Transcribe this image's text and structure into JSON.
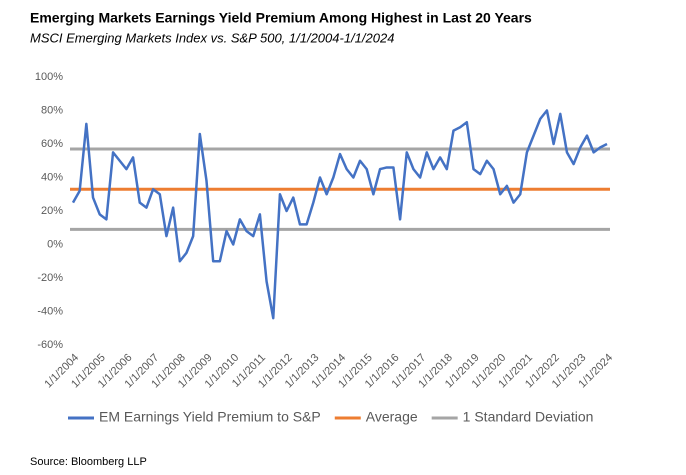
{
  "chart_data": {
    "type": "line",
    "title": "Emerging Markets Earnings Yield Premium Among Highest in Last 20 Years",
    "subtitle": "MSCI Emerging Markets Index vs. S&P 500, 1/1/2004-1/1/2024",
    "source": "Source: Bloomberg LLP",
    "categories": [
      "1/1/2004",
      null,
      null,
      null,
      "1/1/2005",
      null,
      null,
      null,
      "1/1/2006",
      null,
      null,
      null,
      "1/1/2007",
      null,
      null,
      null,
      "1/1/2008",
      null,
      null,
      null,
      "1/1/2009",
      null,
      null,
      null,
      "1/1/2010",
      null,
      null,
      null,
      "1/1/2011",
      null,
      null,
      null,
      "1/1/2012",
      null,
      null,
      null,
      "1/1/2013",
      null,
      null,
      null,
      "1/1/2014",
      null,
      null,
      null,
      "1/1/2015",
      null,
      null,
      null,
      "1/1/2016",
      null,
      null,
      null,
      "1/1/2017",
      null,
      null,
      null,
      "1/1/2018",
      null,
      null,
      null,
      "1/1/2019",
      null,
      null,
      null,
      "1/1/2020",
      null,
      null,
      null,
      "1/1/2021",
      null,
      null,
      null,
      "1/1/2022",
      null,
      null,
      null,
      "1/1/2023",
      null,
      null,
      null,
      "1/1/2024"
    ],
    "series": [
      {
        "name": "EM Earnings Yield Premium to S&P",
        "color": "#4472c4",
        "values": [
          25,
          32,
          72,
          28,
          18,
          15,
          55,
          50,
          45,
          52,
          25,
          22,
          33,
          30,
          5,
          22,
          -10,
          -5,
          5,
          66,
          38,
          -10,
          -10,
          8,
          0,
          15,
          8,
          5,
          18,
          -22,
          -44,
          30,
          20,
          28,
          12,
          12,
          25,
          40,
          30,
          40,
          54,
          45,
          40,
          50,
          45,
          30,
          45,
          46,
          46,
          15,
          55,
          45,
          40,
          55,
          45,
          52,
          45,
          68,
          70,
          73,
          45,
          42,
          50,
          45,
          30,
          35,
          25,
          30,
          55,
          65,
          75,
          80,
          60,
          78,
          55,
          48,
          58,
          65,
          55,
          58,
          60
        ]
      }
    ],
    "reference_lines": [
      {
        "name": "Average",
        "color": "#ed7d31",
        "values": [
          33
        ]
      },
      {
        "name": "1 Standard Deviation",
        "color": "#a5a5a5",
        "values": [
          57,
          9
        ]
      }
    ],
    "ylim": [
      -60,
      100
    ],
    "yticks": [
      {
        "value": -60,
        "label": "-60%"
      },
      {
        "value": -40,
        "label": "-40%"
      },
      {
        "value": -20,
        "label": "-20%"
      },
      {
        "value": 0,
        "label": "0%"
      },
      {
        "value": 20,
        "label": "20%"
      },
      {
        "value": 40,
        "label": "40%"
      },
      {
        "value": 60,
        "label": "60%"
      },
      {
        "value": 80,
        "label": "80%"
      },
      {
        "value": 100,
        "label": "100%"
      }
    ]
  }
}
